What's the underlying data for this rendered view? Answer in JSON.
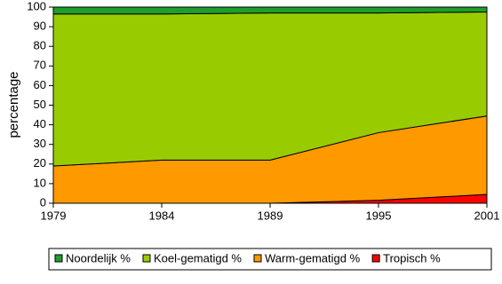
{
  "chart_data": {
    "type": "stacked-area",
    "y_label": "percentage",
    "categories": [
      "1979",
      "1984",
      "1989",
      "1995",
      "2001"
    ],
    "series": [
      {
        "name": "Noordelijk %",
        "color": "#1f9e2c",
        "values": [
          3.5,
          3.5,
          3,
          3,
          2.5
        ]
      },
      {
        "name": "Koel-gematigd %",
        "color": "#99cc00",
        "values": [
          77.5,
          74.5,
          75,
          61,
          53
        ]
      },
      {
        "name": "Warm-gematigd %",
        "color": "#ff9900",
        "values": [
          19,
          22,
          22,
          34.5,
          40
        ]
      },
      {
        "name": "Tropisch %",
        "color": "#ff0000",
        "values": [
          0,
          0,
          0,
          1.5,
          4.5
        ]
      }
    ],
    "ylim": [
      0,
      100
    ],
    "yticks": [
      0,
      10,
      20,
      30,
      40,
      50,
      60,
      70,
      80,
      90,
      100
    ],
    "legend": "bottom"
  }
}
